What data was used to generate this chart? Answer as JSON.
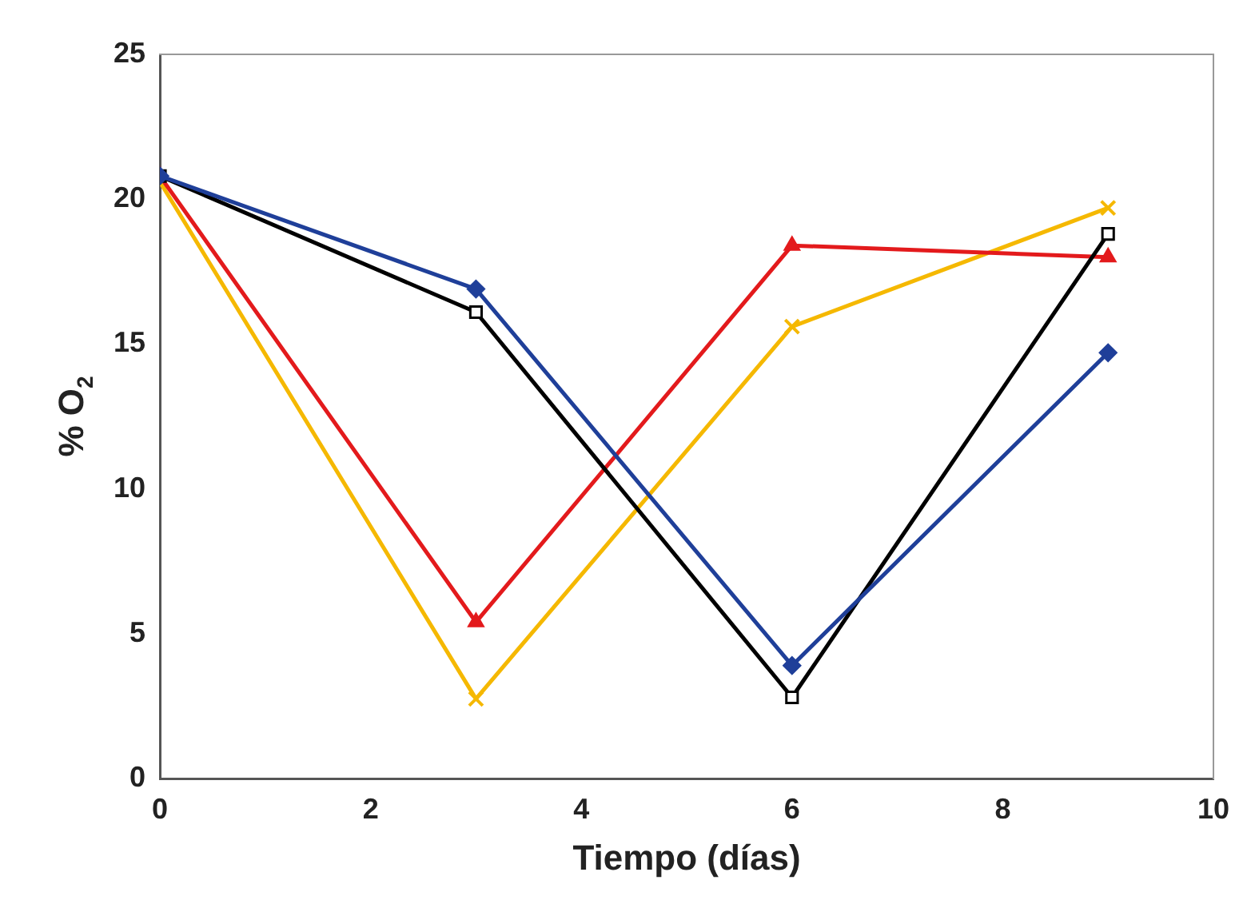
{
  "chart_data": {
    "type": "line",
    "xlabel": "Tiempo (días)",
    "ylabel": "% O$_{2}$",
    "x": [
      0,
      3,
      6,
      9
    ],
    "series": [
      {
        "color": "#1f3f99",
        "values": [
          20.8,
          16.9,
          3.9,
          14.7
        ],
        "marker": "diamond"
      },
      {
        "color": "#000000",
        "values": [
          20.8,
          16.1,
          2.8,
          18.8
        ],
        "marker": "square"
      },
      {
        "color": "#e31a1c",
        "values": [
          20.8,
          5.4,
          18.4,
          18.0
        ],
        "marker": "triangle"
      },
      {
        "color": "#f5b800",
        "values": [
          20.6,
          2.75,
          15.6,
          19.7
        ],
        "marker": "cross"
      }
    ],
    "xlim": [
      0,
      10
    ],
    "xticks": [
      0,
      2,
      4,
      6,
      8,
      10
    ],
    "ylim": [
      0,
      25
    ],
    "yticks": [
      0,
      5,
      10,
      15,
      20,
      25
    ],
    "grid": false,
    "legend": false
  }
}
